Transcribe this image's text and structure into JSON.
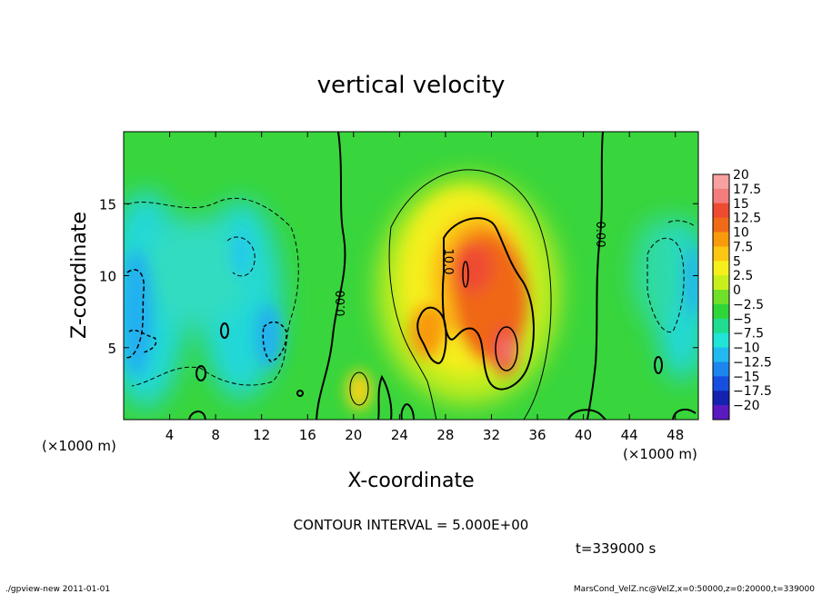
{
  "chart_data": {
    "type": "heatmap",
    "title": "vertical velocity",
    "xlabel": "X-coordinate",
    "ylabel": "Z-coordinate",
    "x_unit_left": "(×1000 m)",
    "x_unit_right": "(×1000 m)",
    "xlim": [
      0,
      50
    ],
    "ylim": [
      0,
      20
    ],
    "x_ticks": [
      4,
      8,
      12,
      16,
      20,
      24,
      28,
      32,
      36,
      40,
      44,
      48
    ],
    "x_tick_labels": [
      "4",
      "8",
      "12",
      "16",
      "20",
      "24",
      "28",
      "32",
      "36",
      "40",
      "44",
      "48"
    ],
    "y_ticks": [
      5,
      10,
      15
    ],
    "y_tick_labels": [
      "5",
      "10",
      "15"
    ],
    "colorbar": {
      "labels": [
        "20",
        "17.5",
        "15",
        "12.5",
        "10",
        "7.5",
        "5",
        "2.5",
        "0",
        "−2.5",
        "−5",
        "−7.5",
        "−10",
        "−12.5",
        "−15",
        "−17.5",
        "−20"
      ],
      "colors": [
        "#f7a1a1",
        "#f47c7c",
        "#ef4b32",
        "#f06a18",
        "#f79a0c",
        "#fbc712",
        "#f5f01c",
        "#c7ef1c",
        "#6fe02a",
        "#2fd63a",
        "#1fdc90",
        "#20e4d8",
        "#22b9f0",
        "#1d86ee",
        "#164fe0",
        "#1422b0",
        "#5a1abf"
      ]
    },
    "contour_labels": [
      "0.00",
      "10.0",
      "0.00"
    ],
    "contour_interval_text": "CONTOUR INTERVAL = 5.000E+00",
    "time_text": "t=339000 s"
  },
  "footer": {
    "left": "./gpview-new 2011-01-01",
    "right": "MarsCond_VelZ.nc@VelZ,x=0:50000,z=0:20000,t=339000"
  }
}
